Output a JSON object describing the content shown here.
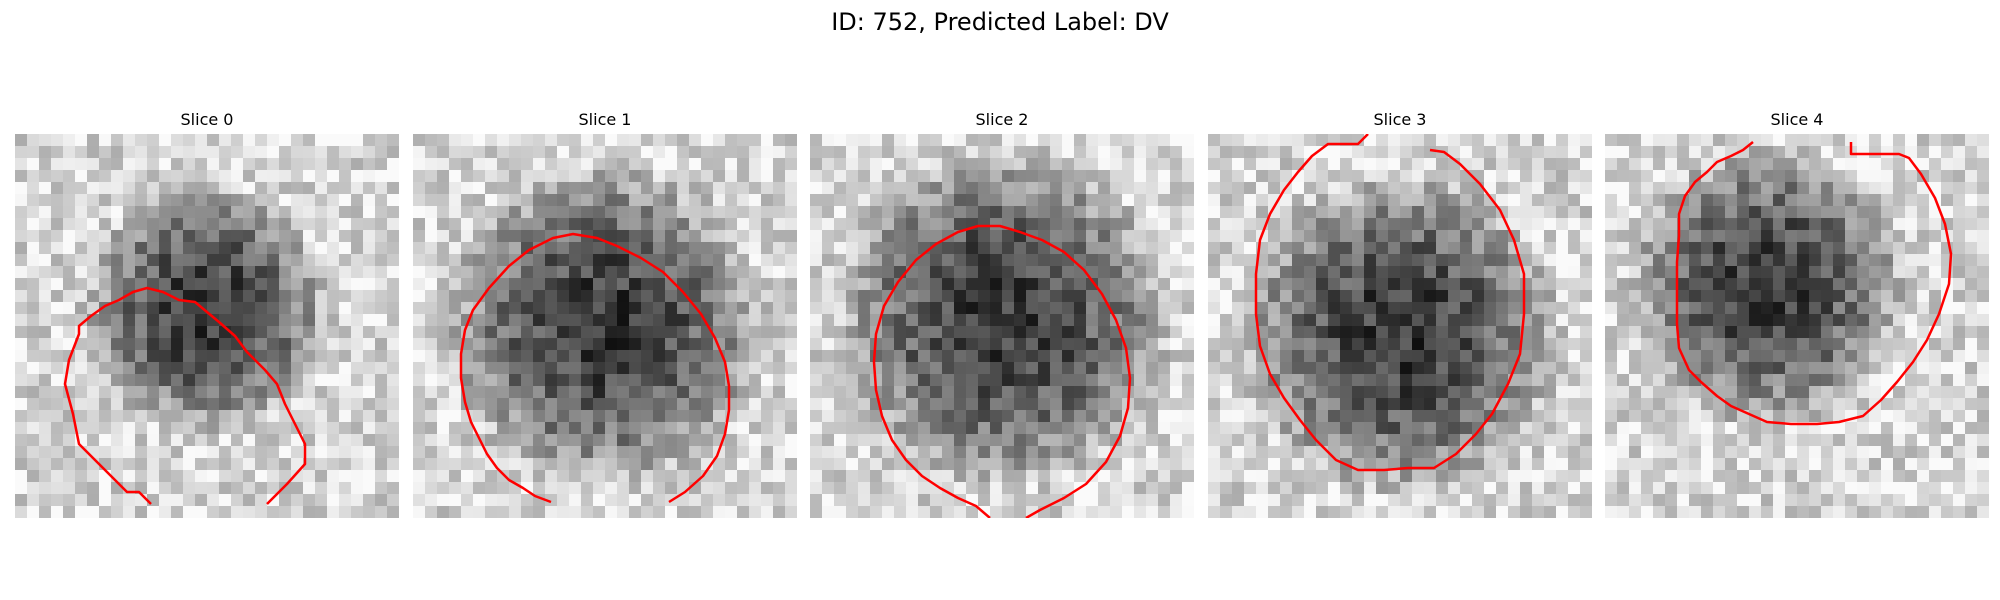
{
  "figure": {
    "title": "ID: 752, Predicted Label: DV"
  },
  "panels": [
    {
      "title": "Slice 0",
      "contour_color": "#ff0000"
    },
    {
      "title": "Slice 1",
      "contour_color": "#ff0000"
    },
    {
      "title": "Slice 2",
      "contour_color": "#ff0000"
    },
    {
      "title": "Slice 3",
      "contour_color": "#ff0000"
    },
    {
      "title": "Slice 4",
      "contour_color": "#ff0000"
    }
  ],
  "image_style": {
    "colormap": "grayscale",
    "grid_cells": 32
  }
}
